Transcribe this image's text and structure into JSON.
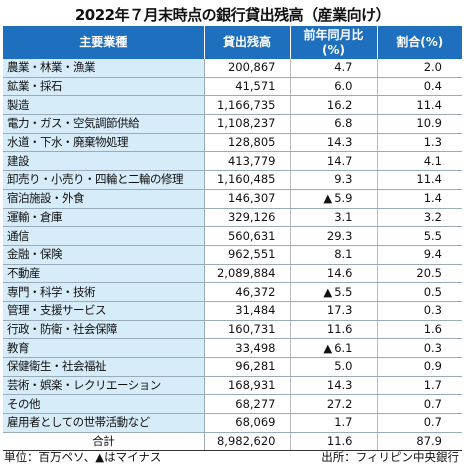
{
  "title": "2022年７月末時点の銀行貸出残高（産業向け）",
  "headers": [
    "主要業種",
    "貸出残高",
    "前年同月比\n(%)",
    "割合(%)"
  ],
  "rows": [
    {
      "name": "農業・林業・漁業",
      "balance": "200,867",
      "yoy": "4.7",
      "yoy_negative": false,
      "share": "2.0"
    },
    {
      "name": "鉱業・採石",
      "balance": "41,571",
      "yoy": "6.0",
      "yoy_negative": false,
      "share": "0.4"
    },
    {
      "name": "製造",
      "balance": "1,166,735",
      "yoy": "16.2",
      "yoy_negative": false,
      "share": "11.4"
    },
    {
      "name": "電力・ガス・空気調節供給",
      "balance": "1,108,237",
      "yoy": "6.8",
      "yoy_negative": false,
      "share": "10.9"
    },
    {
      "name": "水道・下水・廃棄物処理",
      "balance": "128,805",
      "yoy": "14.3",
      "yoy_negative": false,
      "share": "1.3"
    },
    {
      "name": "建設",
      "balance": "413,779",
      "yoy": "14.7",
      "yoy_negative": false,
      "share": "4.1"
    },
    {
      "name": "卸売り・小売り・四輪と二輪の修理",
      "balance": "1,160,485",
      "yoy": "9.3",
      "yoy_negative": false,
      "share": "11.4"
    },
    {
      "name": "宿泊施設・外食",
      "balance": "146,307",
      "yoy": "5.9",
      "yoy_negative": true,
      "share": "1.4"
    },
    {
      "name": "運輸・倉庫",
      "balance": "329,126",
      "yoy": "3.1",
      "yoy_negative": false,
      "share": "3.2"
    },
    {
      "name": "通信",
      "balance": "560,631",
      "yoy": "29.3",
      "yoy_negative": false,
      "share": "5.5"
    },
    {
      "name": "金融・保険",
      "balance": "962,551",
      "yoy": "8.1",
      "yoy_negative": false,
      "share": "9.4"
    },
    {
      "name": "不動産",
      "balance": "2,089,884",
      "yoy": "14.6",
      "yoy_negative": false,
      "share": "20.5"
    },
    {
      "name": "専門・科学・技術",
      "balance": "46,372",
      "yoy": "5.5",
      "yoy_negative": true,
      "share": "0.5"
    },
    {
      "name": "管理・支援サービス",
      "balance": "31,484",
      "yoy": "17.3",
      "yoy_negative": false,
      "share": "0.3"
    },
    {
      "name": "行政・防衛・社会保障",
      "balance": "160,731",
      "yoy": "11.6",
      "yoy_negative": false,
      "share": "1.6"
    },
    {
      "name": "教育",
      "balance": "33,498",
      "yoy": "6.1",
      "yoy_negative": true,
      "share": "0.3"
    },
    {
      "name": "保健衛生・社会福祉",
      "balance": "96,281",
      "yoy": "5.0",
      "yoy_negative": false,
      "share": "0.9"
    },
    {
      "name": "芸術・娯楽・レクリエーション",
      "balance": "168,931",
      "yoy": "14.3",
      "yoy_negative": false,
      "share": "1.7"
    },
    {
      "name": "その他",
      "balance": "68,277",
      "yoy": "27.2",
      "yoy_negative": false,
      "share": "0.7"
    },
    {
      "name": "雇用者としての世帯活動など",
      "balance": "68,069",
      "yoy": "1.7",
      "yoy_negative": false,
      "share": "0.7"
    }
  ],
  "total": {
    "name": "合計",
    "balance": "8,982,620",
    "yoy": "11.6",
    "share": "87.9"
  },
  "negative_marker": "▲",
  "footnote": "単位：百万ペソ、▲はマイナス",
  "source": "出所：フィリピン中央銀行"
}
